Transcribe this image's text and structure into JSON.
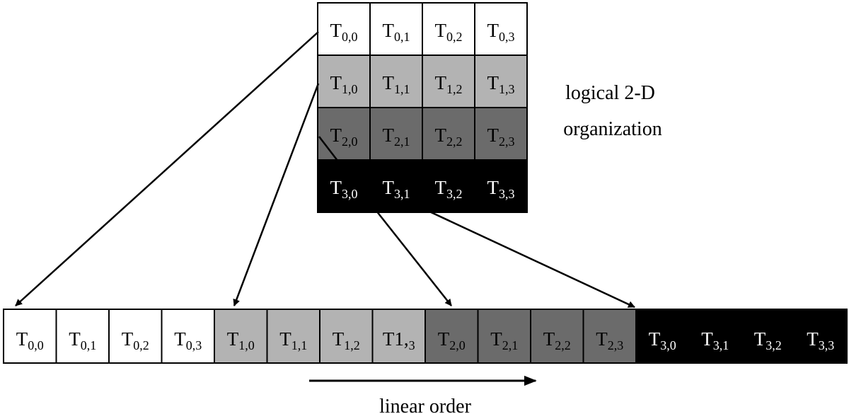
{
  "grid": {
    "caption_lines": [
      "logical 2-D",
      "organization"
    ],
    "rows": [
      {
        "shade": "#ffffff",
        "text_color": "#000000",
        "cells": [
          {
            "base": "T",
            "sub": "0,0"
          },
          {
            "base": "T",
            "sub": "0,1"
          },
          {
            "base": "T",
            "sub": "0,2"
          },
          {
            "base": "T",
            "sub": "0,3"
          }
        ]
      },
      {
        "shade": "#b3b3b3",
        "text_color": "#000000",
        "cells": [
          {
            "base": "T",
            "sub": "1,0"
          },
          {
            "base": "T",
            "sub": "1,1"
          },
          {
            "base": "T",
            "sub": "1,2"
          },
          {
            "base": "T",
            "sub": "1,3"
          }
        ]
      },
      {
        "shade": "#6b6b6b",
        "text_color": "#000000",
        "cells": [
          {
            "base": "T",
            "sub": "2,0"
          },
          {
            "base": "T",
            "sub": "2,1"
          },
          {
            "base": "T",
            "sub": "2,2"
          },
          {
            "base": "T",
            "sub": "2,3"
          }
        ]
      },
      {
        "shade": "#000000",
        "text_color": "#ffffff",
        "cells": [
          {
            "base": "T",
            "sub": "3,0"
          },
          {
            "base": "T",
            "sub": "3,1"
          },
          {
            "base": "T",
            "sub": "3,2"
          },
          {
            "base": "T",
            "sub": "3,3"
          }
        ]
      }
    ]
  },
  "linear": {
    "caption": "linear order",
    "cells": [
      {
        "base": "T",
        "sub": "0,0",
        "shade": "#ffffff",
        "text_color": "#000000"
      },
      {
        "base": "T",
        "sub": "0,1",
        "shade": "#ffffff",
        "text_color": "#000000"
      },
      {
        "base": "T",
        "sub": "0,2",
        "shade": "#ffffff",
        "text_color": "#000000"
      },
      {
        "base": "T",
        "sub": "0,3",
        "shade": "#ffffff",
        "text_color": "#000000"
      },
      {
        "base": "T",
        "sub": "1,0",
        "shade": "#b3b3b3",
        "text_color": "#000000"
      },
      {
        "base": "T",
        "sub": "1,1",
        "shade": "#b3b3b3",
        "text_color": "#000000"
      },
      {
        "base": "T",
        "sub": "1,2",
        "shade": "#b3b3b3",
        "text_color": "#000000"
      },
      {
        "base": "T1,",
        "sub": "3",
        "shade": "#b3b3b3",
        "text_color": "#000000"
      },
      {
        "base": "T",
        "sub": "2,0",
        "shade": "#6b6b6b",
        "text_color": "#000000"
      },
      {
        "base": "T",
        "sub": "2,1",
        "shade": "#6b6b6b",
        "text_color": "#000000"
      },
      {
        "base": "T",
        "sub": "2,2",
        "shade": "#6b6b6b",
        "text_color": "#000000"
      },
      {
        "base": "T",
        "sub": "2,3",
        "shade": "#6b6b6b",
        "text_color": "#000000"
      },
      {
        "base": "T",
        "sub": "3,0",
        "shade": "#000000",
        "text_color": "#ffffff"
      },
      {
        "base": "T",
        "sub": "3,1",
        "shade": "#000000",
        "text_color": "#ffffff"
      },
      {
        "base": "T",
        "sub": "3,2",
        "shade": "#000000",
        "text_color": "#ffffff"
      },
      {
        "base": "T",
        "sub": "3,3",
        "shade": "#000000",
        "text_color": "#ffffff"
      }
    ]
  },
  "colors": {
    "line": "#000000",
    "border": "#000000"
  }
}
